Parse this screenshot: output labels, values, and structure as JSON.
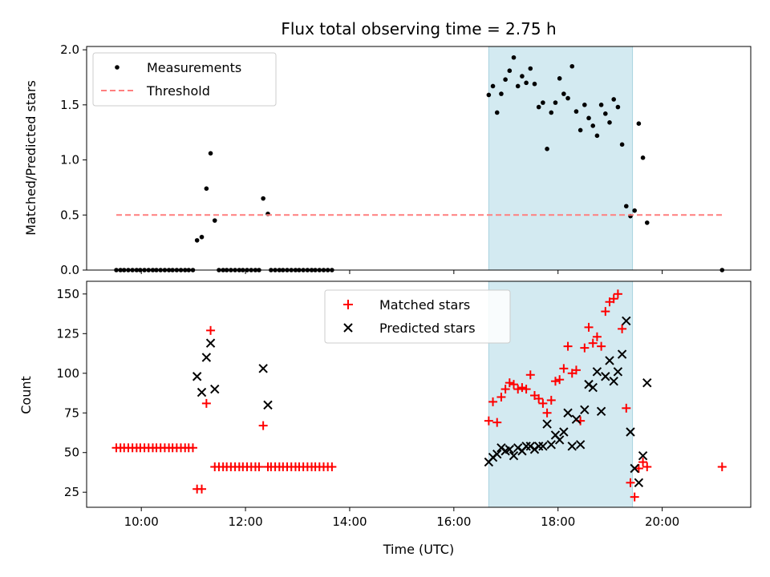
{
  "chart_data": [
    {
      "type": "scatter",
      "title": "Flux total observing time = 2.75 h",
      "xlabel": "",
      "ylabel": "Matched/Predicted stars",
      "xlim": [
        8.95,
        21.7
      ],
      "ylim": [
        0,
        2.03
      ],
      "xticks": [
        10,
        12,
        14,
        16,
        18,
        20
      ],
      "yticks": [
        0.0,
        0.5,
        1.0,
        1.5,
        2.0
      ],
      "ytick_labels": [
        "0.0",
        "0.5",
        "1.0",
        "1.5",
        "2.0"
      ],
      "shaded_region": [
        16.67,
        19.43
      ],
      "shade_color": "#d3eaf1",
      "legend": {
        "location": "top-left",
        "entries": [
          "Measurements",
          "Threshold"
        ]
      },
      "series": [
        {
          "name": "Measurements",
          "marker": "dot",
          "color": "#000000",
          "points": [
            [
              9.52,
              0
            ],
            [
              9.6,
              0
            ],
            [
              9.67,
              0
            ],
            [
              9.75,
              0
            ],
            [
              9.83,
              0
            ],
            [
              9.91,
              0
            ],
            [
              9.98,
              0
            ],
            [
              10.06,
              0
            ],
            [
              10.14,
              0
            ],
            [
              10.22,
              0
            ],
            [
              10.29,
              0
            ],
            [
              10.37,
              0
            ],
            [
              10.45,
              0
            ],
            [
              10.53,
              0
            ],
            [
              10.6,
              0
            ],
            [
              10.68,
              0
            ],
            [
              10.76,
              0
            ],
            [
              10.84,
              0
            ],
            [
              10.91,
              0
            ],
            [
              10.99,
              0
            ],
            [
              11.07,
              0.27
            ],
            [
              11.16,
              0.3
            ],
            [
              11.25,
              0.74
            ],
            [
              11.33,
              1.06
            ],
            [
              11.41,
              0.45
            ],
            [
              11.49,
              0
            ],
            [
              11.57,
              0
            ],
            [
              11.64,
              0
            ],
            [
              11.72,
              0
            ],
            [
              11.8,
              0
            ],
            [
              11.88,
              0
            ],
            [
              11.95,
              0
            ],
            [
              12.03,
              0
            ],
            [
              12.11,
              0
            ],
            [
              12.19,
              0
            ],
            [
              12.26,
              0
            ],
            [
              12.34,
              0.65
            ],
            [
              12.43,
              0.51
            ],
            [
              12.49,
              0
            ],
            [
              12.57,
              0
            ],
            [
              12.65,
              0
            ],
            [
              12.72,
              0
            ],
            [
              12.8,
              0
            ],
            [
              12.88,
              0
            ],
            [
              12.96,
              0
            ],
            [
              13.03,
              0
            ],
            [
              13.11,
              0
            ],
            [
              13.19,
              0
            ],
            [
              13.27,
              0
            ],
            [
              13.34,
              0
            ],
            [
              13.42,
              0
            ],
            [
              13.5,
              0
            ],
            [
              13.58,
              0
            ],
            [
              13.66,
              0
            ],
            [
              16.67,
              1.59
            ],
            [
              16.75,
              1.67
            ],
            [
              16.83,
              1.43
            ],
            [
              16.91,
              1.6
            ],
            [
              16.99,
              1.73
            ],
            [
              17.07,
              1.81
            ],
            [
              17.15,
              1.93
            ],
            [
              17.23,
              1.67
            ],
            [
              17.31,
              1.76
            ],
            [
              17.39,
              1.7
            ],
            [
              17.47,
              1.83
            ],
            [
              17.55,
              1.69
            ],
            [
              17.63,
              1.48
            ],
            [
              17.71,
              1.52
            ],
            [
              17.79,
              1.1
            ],
            [
              17.87,
              1.43
            ],
            [
              17.95,
              1.52
            ],
            [
              18.03,
              1.74
            ],
            [
              18.11,
              1.6
            ],
            [
              18.19,
              1.56
            ],
            [
              18.27,
              1.85
            ],
            [
              18.35,
              1.44
            ],
            [
              18.43,
              1.27
            ],
            [
              18.51,
              1.5
            ],
            [
              18.59,
              1.38
            ],
            [
              18.67,
              1.31
            ],
            [
              18.75,
              1.22
            ],
            [
              18.83,
              1.5
            ],
            [
              18.91,
              1.42
            ],
            [
              18.99,
              1.34
            ],
            [
              19.07,
              1.55
            ],
            [
              19.15,
              1.48
            ],
            [
              19.23,
              1.14
            ],
            [
              19.31,
              0.58
            ],
            [
              19.39,
              0.49
            ],
            [
              19.47,
              0.54
            ],
            [
              19.55,
              1.33
            ],
            [
              19.63,
              1.02
            ],
            [
              19.71,
              0.43
            ],
            [
              21.15,
              0
            ]
          ]
        },
        {
          "name": "Threshold",
          "style": "dashed",
          "color": "#ff7f7f",
          "x": [
            9.52,
            21.15
          ],
          "y": [
            0.5,
            0.5
          ]
        }
      ]
    },
    {
      "type": "scatter",
      "title": "",
      "xlabel": "Time (UTC)",
      "ylabel": "Count",
      "xlim": [
        8.95,
        21.7
      ],
      "ylim": [
        15.5,
        158
      ],
      "xticks": [
        10,
        12,
        14,
        16,
        18,
        20
      ],
      "xtick_labels": [
        "10:00",
        "12:00",
        "14:00",
        "16:00",
        "18:00",
        "20:00"
      ],
      "yticks": [
        25,
        50,
        75,
        100,
        125,
        150
      ],
      "ytick_labels": [
        "25",
        "50",
        "75",
        "100",
        "125",
        "150"
      ],
      "shaded_region": [
        16.67,
        19.43
      ],
      "shade_color": "#d3eaf1",
      "legend": {
        "location": "top-center",
        "entries": [
          "Matched stars",
          "Predicted stars"
        ]
      },
      "series": [
        {
          "name": "Matched stars",
          "marker": "plus",
          "color": "#ff0000",
          "points": [
            [
              9.52,
              53
            ],
            [
              9.6,
              53
            ],
            [
              9.67,
              53
            ],
            [
              9.75,
              53
            ],
            [
              9.83,
              53
            ],
            [
              9.91,
              53
            ],
            [
              9.98,
              53
            ],
            [
              10.06,
              53
            ],
            [
              10.14,
              53
            ],
            [
              10.22,
              53
            ],
            [
              10.29,
              53
            ],
            [
              10.37,
              53
            ],
            [
              10.45,
              53
            ],
            [
              10.53,
              53
            ],
            [
              10.6,
              53
            ],
            [
              10.68,
              53
            ],
            [
              10.76,
              53
            ],
            [
              10.84,
              53
            ],
            [
              10.91,
              53
            ],
            [
              10.99,
              53
            ],
            [
              11.07,
              27
            ],
            [
              11.16,
              27
            ],
            [
              11.25,
              81
            ],
            [
              11.33,
              127
            ],
            [
              11.41,
              41
            ],
            [
              11.49,
              41
            ],
            [
              11.57,
              41
            ],
            [
              11.64,
              41
            ],
            [
              11.72,
              41
            ],
            [
              11.8,
              41
            ],
            [
              11.88,
              41
            ],
            [
              11.95,
              41
            ],
            [
              12.03,
              41
            ],
            [
              12.11,
              41
            ],
            [
              12.19,
              41
            ],
            [
              12.26,
              41
            ],
            [
              12.34,
              67
            ],
            [
              12.43,
              41
            ],
            [
              12.49,
              41
            ],
            [
              12.57,
              41
            ],
            [
              12.65,
              41
            ],
            [
              12.72,
              41
            ],
            [
              12.8,
              41
            ],
            [
              12.88,
              41
            ],
            [
              12.96,
              41
            ],
            [
              13.03,
              41
            ],
            [
              13.11,
              41
            ],
            [
              13.19,
              41
            ],
            [
              13.27,
              41
            ],
            [
              13.34,
              41
            ],
            [
              13.42,
              41
            ],
            [
              13.5,
              41
            ],
            [
              13.58,
              41
            ],
            [
              13.66,
              41
            ],
            [
              16.67,
              70
            ],
            [
              16.75,
              82
            ],
            [
              16.83,
              69
            ],
            [
              16.91,
              85
            ],
            [
              16.99,
              90
            ],
            [
              17.07,
              94
            ],
            [
              17.15,
              93
            ],
            [
              17.23,
              90
            ],
            [
              17.31,
              91
            ],
            [
              17.39,
              90
            ],
            [
              17.47,
              99
            ],
            [
              17.55,
              86
            ],
            [
              17.63,
              84
            ],
            [
              17.71,
              81
            ],
            [
              17.79,
              75
            ],
            [
              17.87,
              83
            ],
            [
              17.95,
              95
            ],
            [
              18.03,
              96
            ],
            [
              18.11,
              103
            ],
            [
              18.19,
              117
            ],
            [
              18.27,
              100
            ],
            [
              18.35,
              102
            ],
            [
              18.43,
              70
            ],
            [
              18.51,
              116
            ],
            [
              18.59,
              129
            ],
            [
              18.67,
              119
            ],
            [
              18.75,
              123
            ],
            [
              18.83,
              117
            ],
            [
              18.91,
              139
            ],
            [
              18.99,
              145
            ],
            [
              19.07,
              147
            ],
            [
              19.15,
              150
            ],
            [
              19.23,
              128
            ],
            [
              19.31,
              78
            ],
            [
              19.39,
              31
            ],
            [
              19.47,
              22
            ],
            [
              19.55,
              40
            ],
            [
              19.63,
              44
            ],
            [
              19.71,
              41
            ],
            [
              21.15,
              41
            ]
          ]
        },
        {
          "name": "Predicted stars",
          "marker": "x",
          "color": "#000000",
          "points": [
            [
              11.07,
              98
            ],
            [
              11.16,
              88
            ],
            [
              11.25,
              110
            ],
            [
              11.33,
              119
            ],
            [
              11.41,
              90
            ],
            [
              12.34,
              103
            ],
            [
              12.43,
              80
            ],
            [
              16.67,
              44
            ],
            [
              16.75,
              47
            ],
            [
              16.83,
              49
            ],
            [
              16.91,
              53
            ],
            [
              16.99,
              51
            ],
            [
              17.07,
              52
            ],
            [
              17.15,
              48
            ],
            [
              17.23,
              53
            ],
            [
              17.31,
              51
            ],
            [
              17.39,
              54
            ],
            [
              17.47,
              54
            ],
            [
              17.55,
              52
            ],
            [
              17.63,
              54
            ],
            [
              17.71,
              54
            ],
            [
              17.79,
              68
            ],
            [
              17.87,
              55
            ],
            [
              17.95,
              61
            ],
            [
              18.03,
              58
            ],
            [
              18.11,
              63
            ],
            [
              18.19,
              75
            ],
            [
              18.27,
              54
            ],
            [
              18.35,
              71
            ],
            [
              18.43,
              55
            ],
            [
              18.51,
              77
            ],
            [
              18.59,
              93
            ],
            [
              18.67,
              91
            ],
            [
              18.75,
              101
            ],
            [
              18.83,
              76
            ],
            [
              18.91,
              98
            ],
            [
              18.99,
              108
            ],
            [
              19.07,
              95
            ],
            [
              19.15,
              101
            ],
            [
              19.23,
              112
            ],
            [
              19.31,
              133
            ],
            [
              19.39,
              63
            ],
            [
              19.47,
              40
            ],
            [
              19.55,
              31
            ],
            [
              19.63,
              48
            ],
            [
              19.71,
              94
            ]
          ]
        }
      ]
    }
  ]
}
